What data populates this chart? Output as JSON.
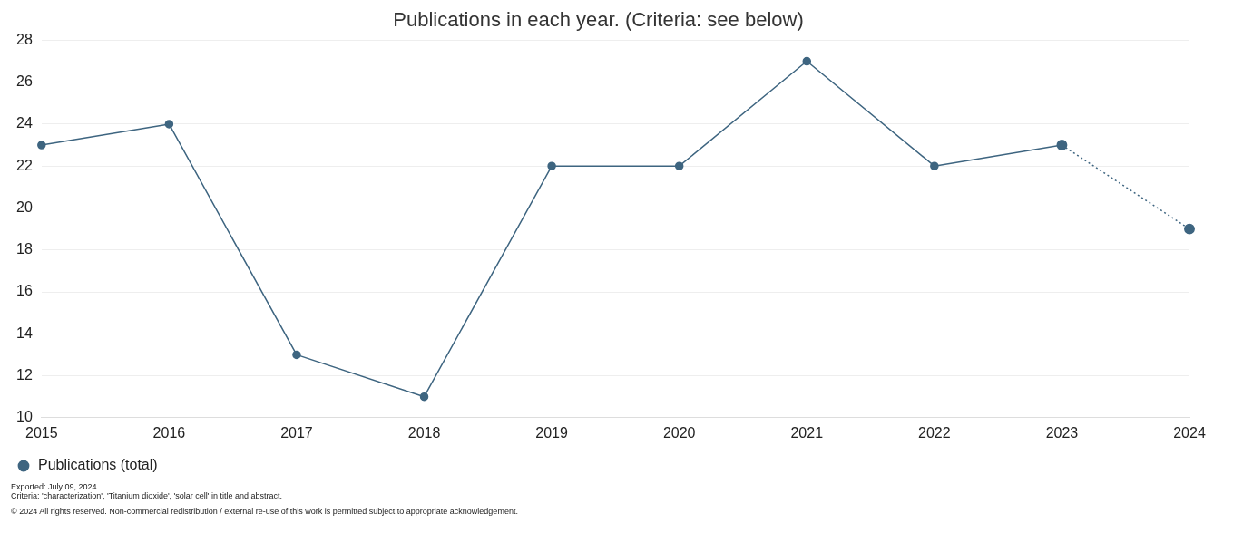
{
  "chart_data": {
    "type": "line",
    "title": "Publications in each year. (Criteria: see below)",
    "categories": [
      "2015",
      "2016",
      "2017",
      "2018",
      "2019",
      "2020",
      "2021",
      "2022",
      "2023",
      "2024"
    ],
    "series": [
      {
        "name": "Publications (total)",
        "color": "#3e6580",
        "values": [
          23,
          24,
          13,
          11,
          22,
          22,
          27,
          22,
          23,
          null
        ],
        "line_style": "solid"
      },
      {
        "color": "#3e6580",
        "values": [
          null,
          null,
          null,
          null,
          null,
          null,
          null,
          null,
          23,
          19
        ],
        "line_style": "dotted"
      }
    ],
    "ylim": [
      10,
      28
    ],
    "yticks": [
      10,
      12,
      14,
      16,
      18,
      20,
      22,
      24,
      26,
      28
    ],
    "grid": "y",
    "legend": "bottom left",
    "marker": "circle",
    "annotations": [
      "Exported: July 09, 2024",
      "Criteria: 'characterization', 'Titanium dioxide', 'solar cell' in title and abstract.",
      "© 2024 All rights reserved. Non-commercial redistribution / external re-use of this work is permitted subject to appropriate acknowledgement."
    ]
  }
}
